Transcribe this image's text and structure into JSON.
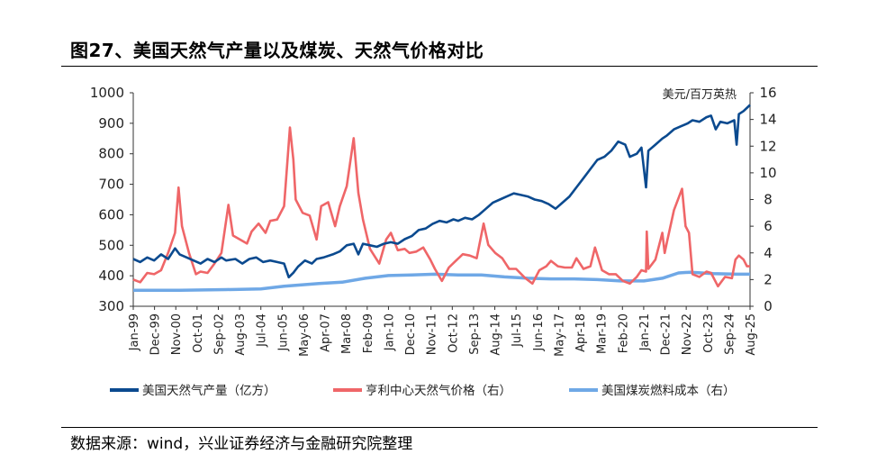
{
  "title": "图27、美国天然气产量以及煤炭、天然气价格对比",
  "source": "数据来源：wind，兴业证券经济与金融研究院整理",
  "chart_data": {
    "type": "line",
    "title": "图27、美国天然气产量以及煤炭、天然气价格对比",
    "left_axis": {
      "label": "亿方",
      "ylim": [
        300,
        1000
      ],
      "ticks": [
        "300",
        "400",
        "500",
        "600",
        "700",
        "800",
        "900",
        "1000"
      ]
    },
    "right_axis": {
      "label": "美元/百万英热",
      "ylim": [
        0,
        16
      ],
      "ticks": [
        "0",
        "2",
        "4",
        "6",
        "8",
        "10",
        "12",
        "14",
        "16"
      ]
    },
    "x_ticks": [
      "Jan-99",
      "Dec-99",
      "Nov-00",
      "Oct-01",
      "Sep-02",
      "Aug-03",
      "Jul-04",
      "Jun-05",
      "May-06",
      "Apr-07",
      "Mar-08",
      "Feb-09",
      "Jan-10",
      "Dec-10",
      "Nov-11",
      "Oct-12",
      "Sep-13",
      "Aug-14",
      "Jul-15",
      "Jun-16",
      "May-17",
      "Apr-18",
      "Mar-19",
      "Feb-20",
      "Jan-21",
      "Dec-21",
      "Nov-22",
      "Oct-23",
      "Sep-24",
      "Aug-25"
    ],
    "x_range_years": [
      1999.0,
      2025.58
    ],
    "legend_position": "bottom",
    "grid": false,
    "series": [
      {
        "name": "美国天然气产量（亿方）",
        "axis": "left",
        "color": "#0b4a8f",
        "points": [
          [
            1999.0,
            455
          ],
          [
            1999.3,
            445
          ],
          [
            1999.6,
            460
          ],
          [
            1999.9,
            450
          ],
          [
            2000.2,
            470
          ],
          [
            2000.5,
            455
          ],
          [
            2000.8,
            490
          ],
          [
            2001.0,
            470
          ],
          [
            2001.3,
            460
          ],
          [
            2001.6,
            450
          ],
          [
            2001.9,
            440
          ],
          [
            2002.2,
            455
          ],
          [
            2002.5,
            445
          ],
          [
            2002.8,
            460
          ],
          [
            2003.0,
            450
          ],
          [
            2003.4,
            455
          ],
          [
            2003.7,
            440
          ],
          [
            2004.0,
            455
          ],
          [
            2004.3,
            460
          ],
          [
            2004.6,
            445
          ],
          [
            2004.9,
            450
          ],
          [
            2005.2,
            445
          ],
          [
            2005.5,
            440
          ],
          [
            2005.7,
            395
          ],
          [
            2005.9,
            410
          ],
          [
            2006.1,
            430
          ],
          [
            2006.4,
            450
          ],
          [
            2006.7,
            440
          ],
          [
            2006.9,
            455
          ],
          [
            2007.2,
            460
          ],
          [
            2007.6,
            470
          ],
          [
            2007.9,
            480
          ],
          [
            2008.2,
            500
          ],
          [
            2008.5,
            505
          ],
          [
            2008.7,
            470
          ],
          [
            2008.9,
            505
          ],
          [
            2009.2,
            500
          ],
          [
            2009.5,
            495
          ],
          [
            2009.8,
            505
          ],
          [
            2010.1,
            510
          ],
          [
            2010.4,
            505
          ],
          [
            2010.7,
            520
          ],
          [
            2011.0,
            530
          ],
          [
            2011.3,
            550
          ],
          [
            2011.6,
            555
          ],
          [
            2011.9,
            570
          ],
          [
            2012.2,
            580
          ],
          [
            2012.5,
            575
          ],
          [
            2012.8,
            585
          ],
          [
            2013.0,
            580
          ],
          [
            2013.3,
            590
          ],
          [
            2013.6,
            585
          ],
          [
            2013.9,
            600
          ],
          [
            2014.2,
            620
          ],
          [
            2014.5,
            640
          ],
          [
            2014.8,
            650
          ],
          [
            2015.1,
            660
          ],
          [
            2015.4,
            670
          ],
          [
            2015.7,
            665
          ],
          [
            2016.0,
            660
          ],
          [
            2016.3,
            650
          ],
          [
            2016.6,
            645
          ],
          [
            2016.9,
            635
          ],
          [
            2017.2,
            620
          ],
          [
            2017.5,
            640
          ],
          [
            2017.8,
            660
          ],
          [
            2018.1,
            690
          ],
          [
            2018.4,
            720
          ],
          [
            2018.7,
            750
          ],
          [
            2019.0,
            780
          ],
          [
            2019.3,
            790
          ],
          [
            2019.6,
            810
          ],
          [
            2019.9,
            840
          ],
          [
            2020.2,
            830
          ],
          [
            2020.4,
            790
          ],
          [
            2020.7,
            800
          ],
          [
            2020.9,
            820
          ],
          [
            2021.1,
            690
          ],
          [
            2021.2,
            810
          ],
          [
            2021.5,
            830
          ],
          [
            2021.8,
            850
          ],
          [
            2022.0,
            860
          ],
          [
            2022.3,
            880
          ],
          [
            2022.6,
            890
          ],
          [
            2022.9,
            900
          ],
          [
            2023.1,
            910
          ],
          [
            2023.4,
            905
          ],
          [
            2023.7,
            920
          ],
          [
            2023.9,
            925
          ],
          [
            2024.1,
            880
          ],
          [
            2024.3,
            905
          ],
          [
            2024.6,
            900
          ],
          [
            2024.9,
            910
          ],
          [
            2025.0,
            830
          ],
          [
            2025.1,
            930
          ],
          [
            2025.3,
            940
          ],
          [
            2025.58,
            960
          ]
        ]
      },
      {
        "name": "亨利中心天然气价格（右）",
        "axis": "right",
        "color": "#ef6668",
        "points": [
          [
            1999.0,
            2.0
          ],
          [
            1999.3,
            1.8
          ],
          [
            1999.6,
            2.5
          ],
          [
            1999.9,
            2.4
          ],
          [
            2000.2,
            2.7
          ],
          [
            2000.5,
            4.0
          ],
          [
            2000.8,
            5.5
          ],
          [
            2000.95,
            8.9
          ],
          [
            2001.1,
            6.0
          ],
          [
            2001.4,
            4.0
          ],
          [
            2001.7,
            2.4
          ],
          [
            2001.9,
            2.6
          ],
          [
            2002.2,
            2.5
          ],
          [
            2002.5,
            3.2
          ],
          [
            2002.8,
            4.0
          ],
          [
            2003.1,
            7.6
          ],
          [
            2003.3,
            5.3
          ],
          [
            2003.6,
            5.0
          ],
          [
            2003.9,
            4.7
          ],
          [
            2004.1,
            5.6
          ],
          [
            2004.4,
            6.2
          ],
          [
            2004.7,
            5.5
          ],
          [
            2004.9,
            6.4
          ],
          [
            2005.2,
            6.5
          ],
          [
            2005.5,
            7.5
          ],
          [
            2005.75,
            13.4
          ],
          [
            2005.9,
            11.0
          ],
          [
            2006.0,
            8.0
          ],
          [
            2006.3,
            7.0
          ],
          [
            2006.6,
            6.8
          ],
          [
            2006.9,
            5.0
          ],
          [
            2007.1,
            7.5
          ],
          [
            2007.4,
            7.8
          ],
          [
            2007.7,
            6.0
          ],
          [
            2007.9,
            7.5
          ],
          [
            2008.2,
            9.0
          ],
          [
            2008.5,
            12.6
          ],
          [
            2008.7,
            8.5
          ],
          [
            2008.9,
            6.5
          ],
          [
            2009.2,
            4.3
          ],
          [
            2009.6,
            3.2
          ],
          [
            2009.9,
            5.0
          ],
          [
            2010.1,
            5.5
          ],
          [
            2010.4,
            4.2
          ],
          [
            2010.7,
            4.3
          ],
          [
            2010.9,
            4.0
          ],
          [
            2011.2,
            4.1
          ],
          [
            2011.5,
            4.4
          ],
          [
            2011.8,
            3.5
          ],
          [
            2012.0,
            2.8
          ],
          [
            2012.3,
            1.9
          ],
          [
            2012.6,
            2.9
          ],
          [
            2012.9,
            3.4
          ],
          [
            2013.2,
            3.9
          ],
          [
            2013.5,
            3.8
          ],
          [
            2013.8,
            3.6
          ],
          [
            2014.1,
            6.2
          ],
          [
            2014.3,
            4.6
          ],
          [
            2014.6,
            4.0
          ],
          [
            2014.9,
            3.6
          ],
          [
            2015.2,
            2.8
          ],
          [
            2015.5,
            2.8
          ],
          [
            2015.9,
            2.1
          ],
          [
            2016.2,
            1.7
          ],
          [
            2016.5,
            2.7
          ],
          [
            2016.8,
            3.0
          ],
          [
            2017.0,
            3.4
          ],
          [
            2017.3,
            3.0
          ],
          [
            2017.6,
            2.9
          ],
          [
            2017.9,
            2.9
          ],
          [
            2018.1,
            3.6
          ],
          [
            2018.4,
            2.8
          ],
          [
            2018.7,
            3.0
          ],
          [
            2018.9,
            4.4
          ],
          [
            2019.2,
            2.7
          ],
          [
            2019.5,
            2.4
          ],
          [
            2019.8,
            2.4
          ],
          [
            2020.1,
            1.9
          ],
          [
            2020.4,
            1.7
          ],
          [
            2020.7,
            2.2
          ],
          [
            2020.9,
            2.7
          ],
          [
            2021.1,
            2.6
          ],
          [
            2021.13,
            5.6
          ],
          [
            2021.2,
            2.8
          ],
          [
            2021.5,
            3.5
          ],
          [
            2021.8,
            5.5
          ],
          [
            2021.9,
            4.0
          ],
          [
            2022.0,
            4.8
          ],
          [
            2022.3,
            7.2
          ],
          [
            2022.65,
            8.8
          ],
          [
            2022.8,
            6.0
          ],
          [
            2022.95,
            5.5
          ],
          [
            2023.1,
            2.4
          ],
          [
            2023.4,
            2.2
          ],
          [
            2023.7,
            2.6
          ],
          [
            2023.9,
            2.5
          ],
          [
            2024.2,
            1.5
          ],
          [
            2024.5,
            2.2
          ],
          [
            2024.8,
            2.1
          ],
          [
            2024.95,
            3.5
          ],
          [
            2025.1,
            3.8
          ],
          [
            2025.3,
            3.5
          ],
          [
            2025.45,
            3.0
          ],
          [
            2025.58,
            3.0
          ]
        ]
      },
      {
        "name": "美国煤炭燃料成本（右）",
        "axis": "right",
        "color": "#6fa8e6",
        "points": [
          [
            1999.0,
            1.2
          ],
          [
            2001.0,
            1.2
          ],
          [
            2003.0,
            1.25
          ],
          [
            2004.5,
            1.3
          ],
          [
            2005.5,
            1.5
          ],
          [
            2007.0,
            1.7
          ],
          [
            2008.0,
            1.8
          ],
          [
            2009.0,
            2.1
          ],
          [
            2010.0,
            2.3
          ],
          [
            2011.0,
            2.35
          ],
          [
            2012.0,
            2.4
          ],
          [
            2013.0,
            2.35
          ],
          [
            2014.0,
            2.35
          ],
          [
            2015.0,
            2.2
          ],
          [
            2016.0,
            2.1
          ],
          [
            2017.0,
            2.05
          ],
          [
            2018.0,
            2.05
          ],
          [
            2019.0,
            2.0
          ],
          [
            2020.0,
            1.9
          ],
          [
            2021.0,
            1.9
          ],
          [
            2021.8,
            2.1
          ],
          [
            2022.5,
            2.5
          ],
          [
            2023.0,
            2.55
          ],
          [
            2024.0,
            2.45
          ],
          [
            2025.0,
            2.4
          ],
          [
            2025.58,
            2.4
          ]
        ]
      }
    ]
  }
}
